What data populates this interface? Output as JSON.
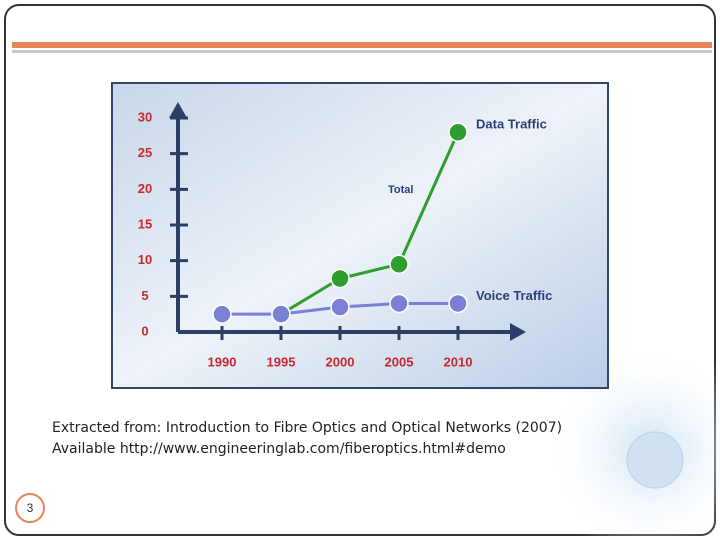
{
  "chart_data": {
    "type": "line",
    "categories": [
      "1990",
      "1995",
      "2000",
      "2005",
      "2010"
    ],
    "series": [
      {
        "name": "Voice Traffic",
        "color": "#7b7fd6",
        "values": [
          2.5,
          2.5,
          3.5,
          4,
          4
        ]
      },
      {
        "name": "Data Traffic",
        "color": "#2e9e2e",
        "values": [
          null,
          2.5,
          7.5,
          9.5,
          28
        ]
      }
    ],
    "annotation": "Total",
    "ylim": [
      0,
      30
    ],
    "yticks": [
      0,
      5,
      10,
      15,
      20,
      25,
      30
    ]
  },
  "slide": {
    "caption": [
      "Extracted from: Introduction to Fibre Optics and Optical Networks (2007)",
      "Available http://www.engineeringlab.com/fiberoptics.html#demo"
    ],
    "page_number": "3"
  }
}
